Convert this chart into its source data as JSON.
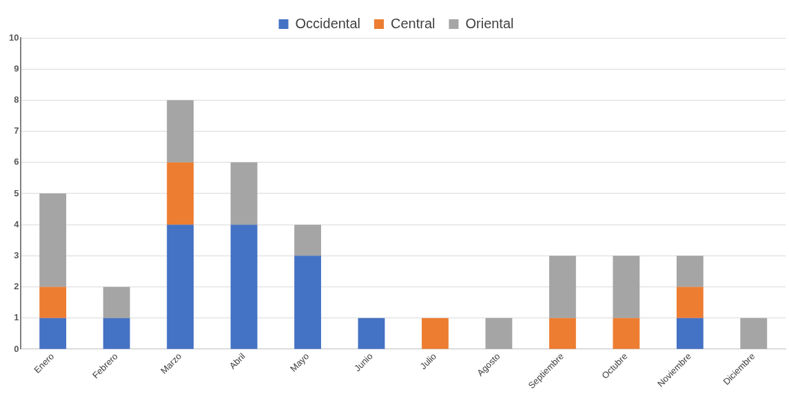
{
  "chart_data": {
    "type": "bar",
    "stacked": true,
    "categories": [
      "Enero",
      "Febrero",
      "Marzo",
      "Abril",
      "Mayo",
      "Junio",
      "Julio",
      "Agosto",
      "Septiembre",
      "Octubre",
      "Noviembre",
      "Diciembre"
    ],
    "series": [
      {
        "name": "Occidental",
        "color": "#4472c4",
        "values": [
          1,
          1,
          4,
          4,
          3,
          1,
          0,
          0,
          0,
          0,
          1,
          0
        ]
      },
      {
        "name": "Central",
        "color": "#ed7d31",
        "values": [
          1,
          0,
          2,
          0,
          0,
          0,
          1,
          0,
          1,
          1,
          1,
          0
        ]
      },
      {
        "name": "Oriental",
        "color": "#a5a5a5",
        "values": [
          3,
          1,
          2,
          2,
          1,
          0,
          0,
          1,
          2,
          2,
          1,
          1
        ]
      }
    ],
    "ylim": [
      0,
      10
    ],
    "yticks": [
      0,
      1,
      2,
      3,
      4,
      5,
      6,
      7,
      8,
      9,
      10
    ],
    "grid": "y",
    "legend": "top"
  }
}
